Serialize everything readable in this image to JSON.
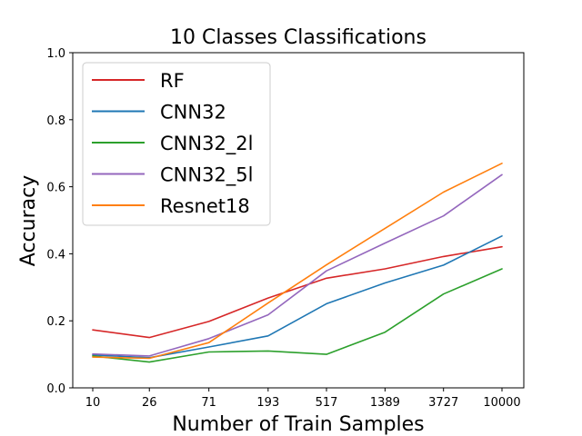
{
  "chart_data": {
    "type": "line",
    "title": "10 Classes Classifications",
    "xlabel": "Number of Train Samples",
    "ylabel": "Accuracy",
    "x": [
      10,
      26,
      71,
      193,
      517,
      1389,
      3727,
      10000
    ],
    "x_tick_labels": [
      "10",
      "26",
      "71",
      "193",
      "517",
      "1389",
      "3727",
      "10000"
    ],
    "y_ticks": [
      0.0,
      0.2,
      0.4,
      0.6,
      0.8,
      1.0
    ],
    "y_tick_labels": [
      "0.0",
      "0.2",
      "0.4",
      "0.6",
      "0.8",
      "1.0"
    ],
    "ylim": [
      0,
      1
    ],
    "x_scale": "log",
    "grid": false,
    "legend_position": "top-left",
    "series": [
      {
        "name": "RF",
        "color": "#d62728",
        "values": [
          0.173,
          0.15,
          0.198,
          0.268,
          0.327,
          0.355,
          0.392,
          0.421
        ]
      },
      {
        "name": "CNN32",
        "color": "#1f77b4",
        "values": [
          0.098,
          0.09,
          0.122,
          0.155,
          0.251,
          0.313,
          0.366,
          0.453
        ]
      },
      {
        "name": "CNN32_2l",
        "color": "#2ca02c",
        "values": [
          0.095,
          0.077,
          0.107,
          0.11,
          0.1,
          0.166,
          0.28,
          0.355
        ]
      },
      {
        "name": "CNN32_5l",
        "color": "#9467bd",
        "values": [
          0.101,
          0.095,
          0.147,
          0.218,
          0.349,
          0.432,
          0.513,
          0.636
        ]
      },
      {
        "name": "Resnet18",
        "color": "#ff7f0e",
        "values": [
          0.092,
          0.088,
          0.135,
          0.253,
          0.367,
          0.476,
          0.584,
          0.67
        ]
      }
    ]
  }
}
